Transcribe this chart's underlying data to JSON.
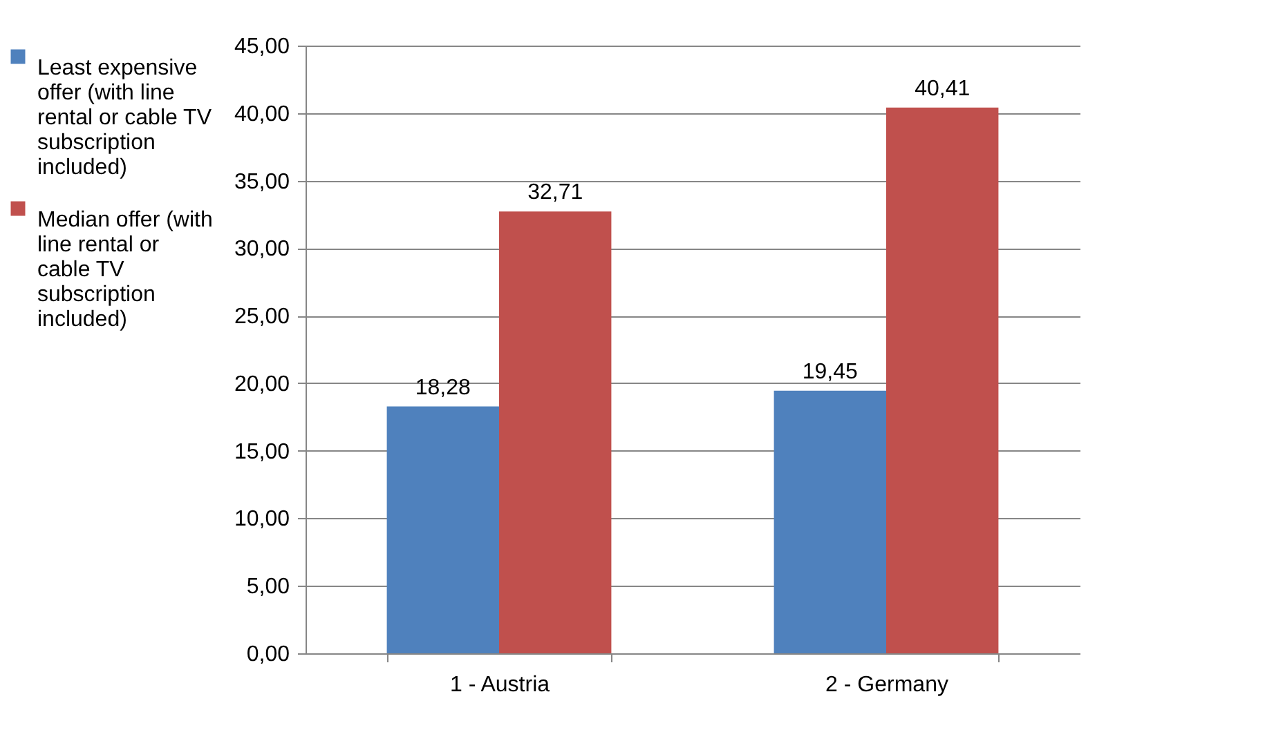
{
  "chart_data": {
    "type": "bar",
    "categories": [
      "1 - Austria",
      "2 - Germany"
    ],
    "series": [
      {
        "name": "Least expensive offer (with line rental or cable TV subscription included)",
        "color": "#4f81bd",
        "values": [
          18.28,
          19.45
        ],
        "value_labels": [
          "18,28",
          "19,45"
        ]
      },
      {
        "name": "Median offer (with line rental or cable TV subscription included)",
        "color": "#c0504d",
        "values": [
          32.71,
          40.41
        ],
        "value_labels": [
          "32,71",
          "40,41"
        ]
      }
    ],
    "ylim": [
      0,
      45
    ],
    "yticks": [
      {
        "value": 0,
        "label": "0,00"
      },
      {
        "value": 5,
        "label": "5,00"
      },
      {
        "value": 10,
        "label": "10,00"
      },
      {
        "value": 15,
        "label": "15,00"
      },
      {
        "value": 20,
        "label": "20,00"
      },
      {
        "value": 25,
        "label": "25,00"
      },
      {
        "value": 30,
        "label": "30,00"
      },
      {
        "value": 35,
        "label": "35,00"
      },
      {
        "value": 40,
        "label": "40,00"
      },
      {
        "value": 45,
        "label": "45,00"
      }
    ],
    "grid": "y",
    "legend": "left"
  }
}
